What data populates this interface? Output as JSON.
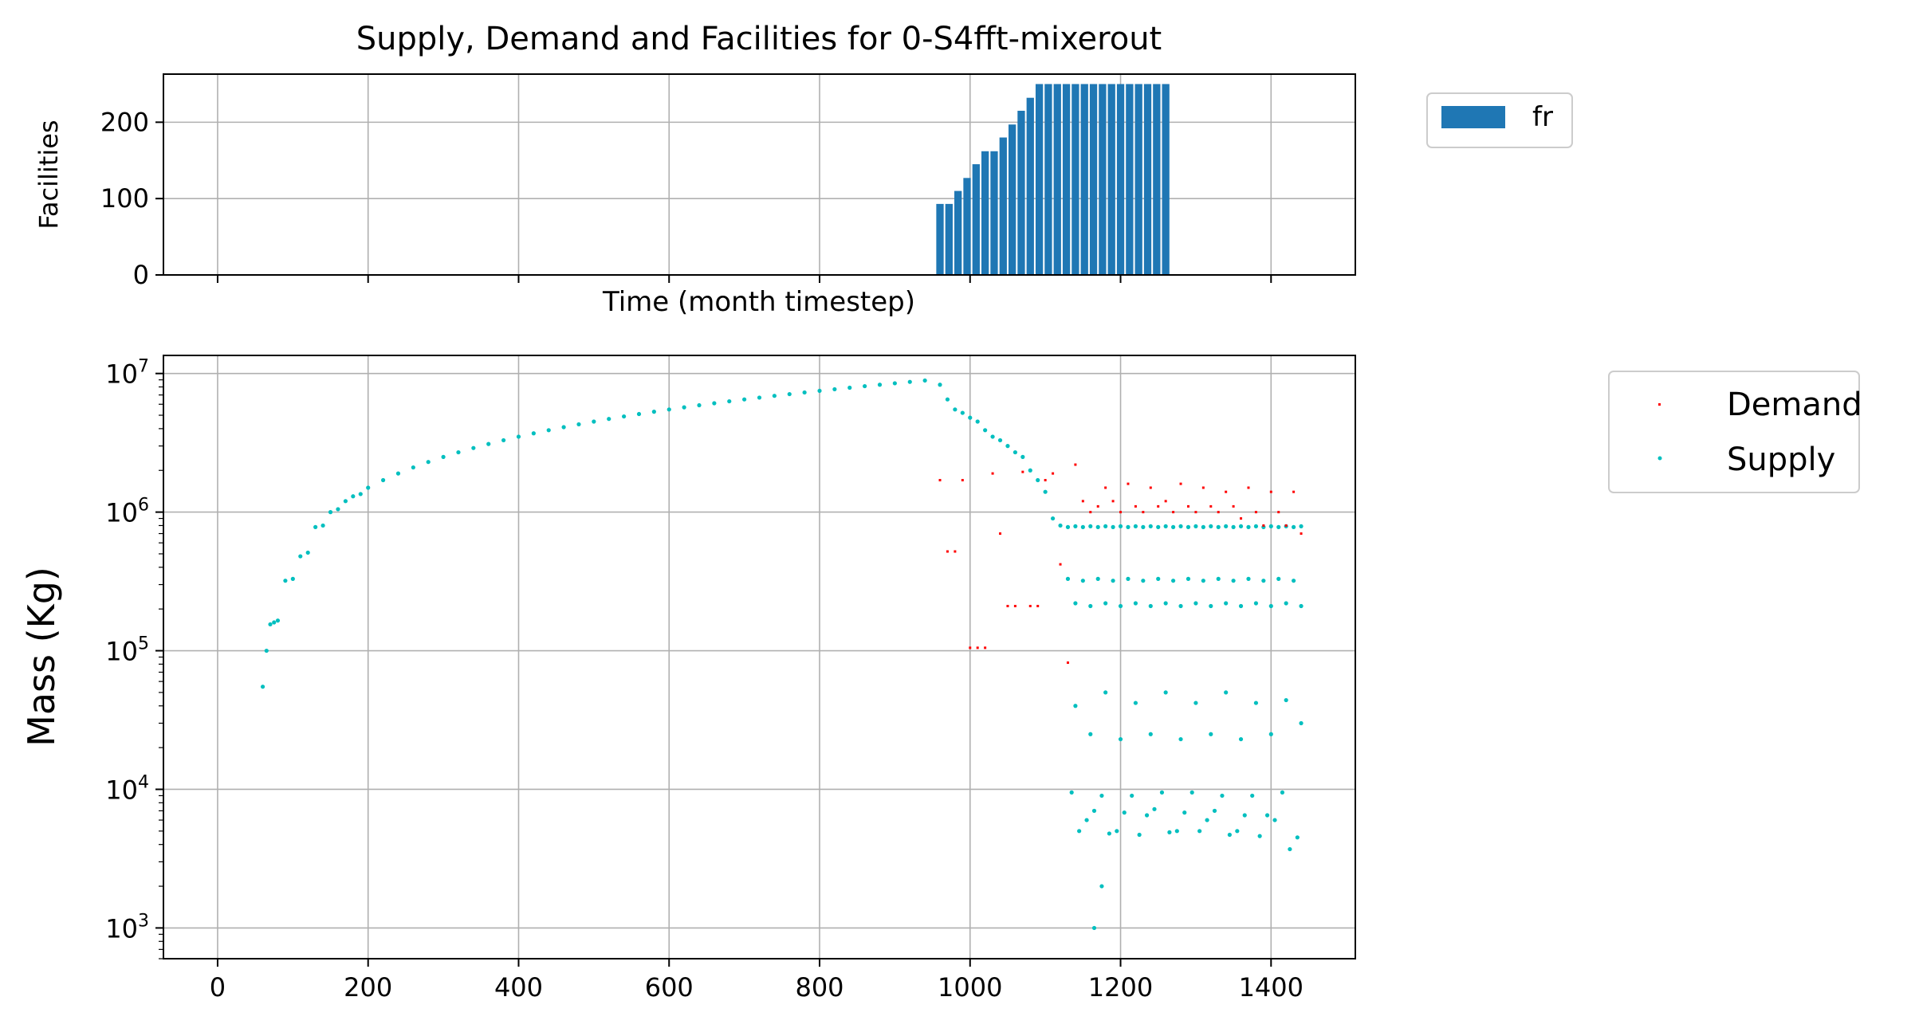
{
  "chart_data": [
    {
      "type": "bar",
      "title": "Supply, Demand and Facilities for 0-S4fft-mixerout",
      "xlabel": "Time (month timestep)",
      "ylabel": "Facilities",
      "xlim": [
        -72,
        1512
      ],
      "ylim": [
        0,
        263
      ],
      "yticks": [
        0,
        100,
        200
      ],
      "grid": true,
      "legend_position": "outside-top-right",
      "series": [
        {
          "name": "fr",
          "color": "#1f77b4",
          "x_start": 960,
          "x_step": 12,
          "values": [
            93,
            93,
            110,
            127,
            145,
            162,
            162,
            180,
            197,
            215,
            232,
            250,
            250,
            250,
            250,
            250,
            250,
            250,
            250,
            250,
            250,
            250,
            250,
            250,
            250,
            250
          ]
        }
      ]
    },
    {
      "type": "scatter",
      "xlabel": "",
      "ylabel": "Mass (Kg)",
      "xlim": [
        -72,
        1512
      ],
      "xticks": [
        0,
        200,
        400,
        600,
        800,
        1000,
        1200,
        1400
      ],
      "yscale": "log",
      "ylim": [
        600,
        13500000
      ],
      "yticks_exp": [
        3,
        4,
        5,
        6,
        7
      ],
      "ytick_base": "10",
      "grid": true,
      "legend_position": "outside-top-right",
      "series": [
        {
          "name": "Demand",
          "color": "#ff0000",
          "x": [
            960,
            970,
            980,
            990,
            1000,
            1010,
            1020,
            1030,
            1040,
            1050,
            1060,
            1070,
            1080,
            1090,
            1100,
            1110,
            1120,
            1130,
            1140,
            1150,
            1160,
            1170,
            1180,
            1190,
            1200,
            1210,
            1220,
            1230,
            1240,
            1250,
            1260,
            1270,
            1280,
            1290,
            1300,
            1310,
            1320,
            1330,
            1340,
            1350,
            1360,
            1370,
            1380,
            1390,
            1400,
            1410,
            1420,
            1430,
            1440
          ],
          "y": [
            1700000,
            520000,
            520000,
            1700000,
            105000,
            105000,
            105000,
            1900000,
            700000,
            210000,
            210000,
            1950000,
            210000,
            210000,
            1700000,
            1900000,
            420000,
            82000,
            2200000,
            1200000,
            1000000,
            1100000,
            1500000,
            1200000,
            1000000,
            1600000,
            1100000,
            1000000,
            1500000,
            1100000,
            1200000,
            1000000,
            1600000,
            1100000,
            1000000,
            1500000,
            1100000,
            1000000,
            1400000,
            1100000,
            900000,
            1500000,
            1000000,
            800000,
            1400000,
            1000000,
            800000,
            1400000,
            700000
          ]
        },
        {
          "name": "Supply",
          "color": "#00bfbf",
          "x": [
            60,
            65,
            70,
            75,
            80,
            90,
            100,
            110,
            120,
            130,
            140,
            150,
            160,
            170,
            180,
            190,
            200,
            220,
            240,
            260,
            280,
            300,
            320,
            340,
            360,
            380,
            400,
            420,
            440,
            460,
            480,
            500,
            520,
            540,
            560,
            580,
            600,
            620,
            640,
            660,
            680,
            700,
            720,
            740,
            760,
            780,
            800,
            820,
            840,
            860,
            880,
            900,
            920,
            940,
            960,
            970,
            980,
            990,
            1000,
            1010,
            1020,
            1030,
            1040,
            1050,
            1060,
            1070,
            1080,
            1090,
            1100,
            1110,
            1120,
            1130,
            1140,
            1150,
            1160,
            1170,
            1180,
            1190,
            1200,
            1210,
            1220,
            1230,
            1240,
            1250,
            1260,
            1270,
            1280,
            1290,
            1300,
            1310,
            1320,
            1330,
            1340,
            1350,
            1360,
            1370,
            1380,
            1390,
            1400,
            1410,
            1420,
            1430,
            1440,
            1130,
            1150,
            1170,
            1190,
            1210,
            1230,
            1250,
            1270,
            1290,
            1310,
            1330,
            1350,
            1370,
            1390,
            1410,
            1430,
            1140,
            1160,
            1180,
            1200,
            1220,
            1240,
            1260,
            1280,
            1300,
            1320,
            1340,
            1360,
            1380,
            1400,
            1420,
            1440,
            1140,
            1160,
            1180,
            1200,
            1220,
            1240,
            1260,
            1280,
            1300,
            1320,
            1340,
            1360,
            1380,
            1400,
            1420,
            1440,
            1135,
            1155,
            1175,
            1195,
            1215,
            1235,
            1255,
            1275,
            1295,
            1315,
            1335,
            1355,
            1375,
            1395,
            1415,
            1435,
            1145,
            1165,
            1185,
            1205,
            1225,
            1245,
            1265,
            1285,
            1305,
            1325,
            1345,
            1365,
            1385,
            1405,
            1425,
            1175,
            1165
          ],
          "y": [
            55000,
            100000,
            155000,
            160000,
            165000,
            320000,
            330000,
            480000,
            510000,
            780000,
            800000,
            1000000,
            1050000,
            1200000,
            1300000,
            1350000,
            1500000,
            1700000,
            1900000,
            2100000,
            2300000,
            2500000,
            2700000,
            2900000,
            3100000,
            3300000,
            3500000,
            3700000,
            3900000,
            4100000,
            4300000,
            4500000,
            4700000,
            4900000,
            5100000,
            5300000,
            5500000,
            5700000,
            5900000,
            6100000,
            6300000,
            6500000,
            6700000,
            6900000,
            7100000,
            7300000,
            7500000,
            7700000,
            7900000,
            8100000,
            8300000,
            8500000,
            8700000,
            8900000,
            8300000,
            6500000,
            5500000,
            5200000,
            4800000,
            4500000,
            3900000,
            3500000,
            3300000,
            3000000,
            2700000,
            2500000,
            2000000,
            1700000,
            1400000,
            900000,
            800000,
            780000,
            790000,
            780000,
            790000,
            780000,
            790000,
            780000,
            790000,
            780000,
            790000,
            780000,
            790000,
            780000,
            790000,
            780000,
            790000,
            780000,
            790000,
            780000,
            790000,
            780000,
            790000,
            780000,
            790000,
            780000,
            790000,
            780000,
            790000,
            780000,
            790000,
            780000,
            790000,
            330000,
            320000,
            330000,
            320000,
            330000,
            320000,
            330000,
            320000,
            330000,
            320000,
            330000,
            320000,
            330000,
            320000,
            330000,
            320000,
            220000,
            210000,
            220000,
            210000,
            220000,
            210000,
            220000,
            210000,
            220000,
            210000,
            220000,
            210000,
            220000,
            210000,
            220000,
            210000,
            40000,
            25000,
            50000,
            23000,
            42000,
            25000,
            50000,
            23000,
            42000,
            25000,
            50000,
            23000,
            42000,
            25000,
            44000,
            30000,
            9500,
            6000,
            9000,
            5000,
            9000,
            6500,
            9500,
            5000,
            9500,
            6000,
            9000,
            5000,
            9000,
            6500,
            9500,
            4500,
            5000,
            7000,
            4800,
            6800,
            4700,
            7200,
            4900,
            6800,
            5000,
            7000,
            4700,
            6500,
            4600,
            6000,
            3700,
            2000,
            1000
          ]
        }
      ]
    }
  ]
}
